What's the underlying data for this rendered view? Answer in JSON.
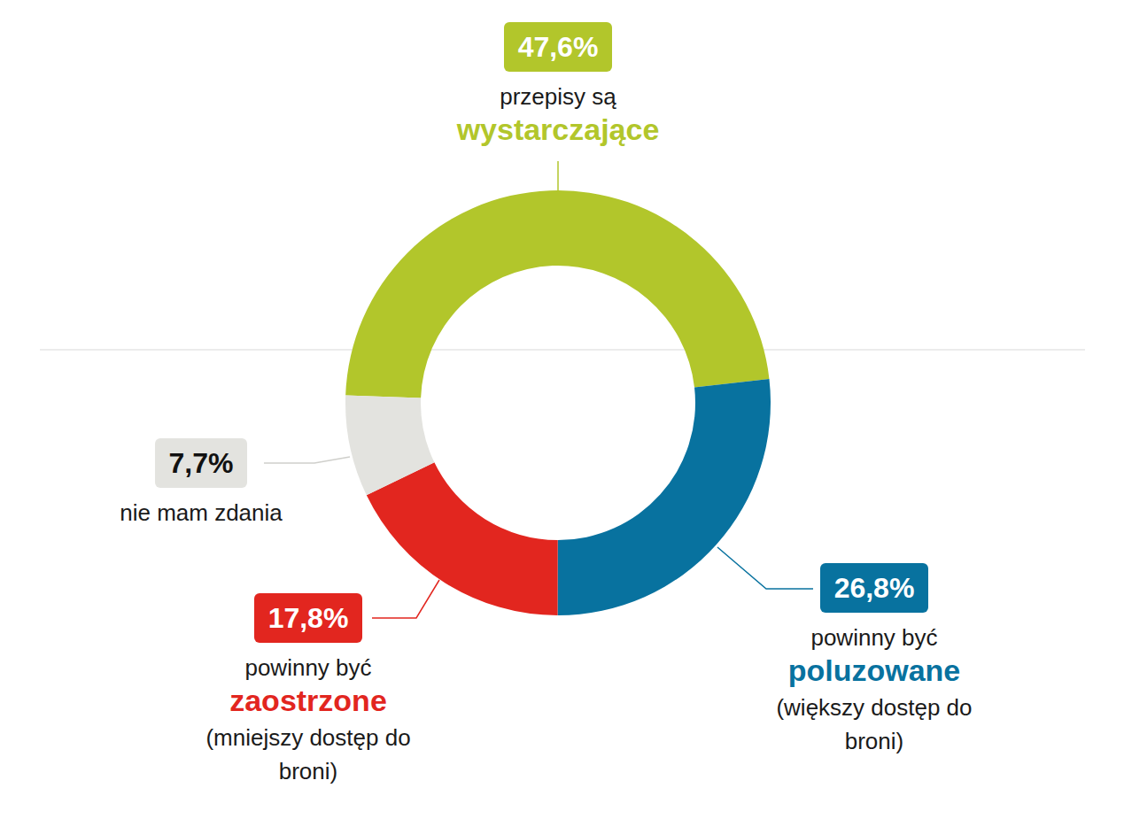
{
  "chart_data": {
    "type": "donut",
    "categories": [
      "przepisy są wystarczające",
      "powinny być poluzowane",
      "powinny być zaostrzone",
      "nie mam zdania"
    ],
    "values": [
      47.6,
      26.8,
      17.8,
      7.7
    ],
    "value_labels": [
      "47,6%",
      "26,8%",
      "17,8%",
      "7,7%"
    ],
    "colors": [
      "#b2c62b",
      "#08729f",
      "#e2261f",
      "#e3e3df"
    ],
    "annotations": [
      null,
      "(większy dostęp do broni)",
      "(mniejszy dostęp do broni)",
      null
    ],
    "highlight": [
      true,
      true,
      true,
      false
    ],
    "data_labels": true
  }
}
